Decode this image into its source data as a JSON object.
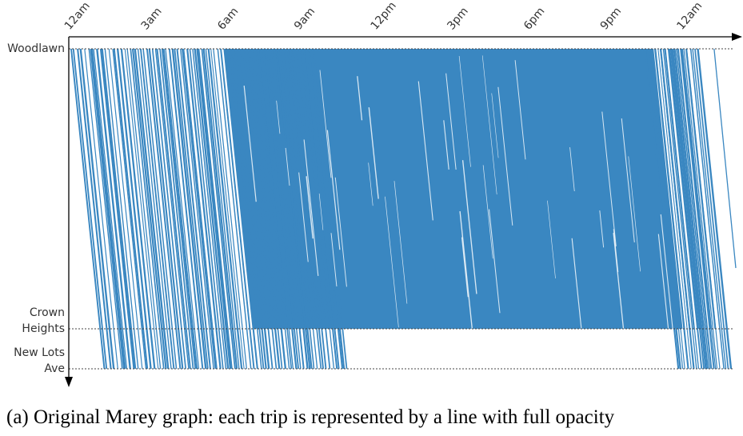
{
  "caption": "(a) Original Marey graph: each trip is represented by a line with full opacity",
  "chart_data": {
    "type": "line",
    "title": "",
    "xlabel": "",
    "ylabel": "",
    "x_ticks": [
      "12am",
      "3am",
      "6am",
      "9am",
      "12pm",
      "3pm",
      "6pm",
      "9pm",
      "12am"
    ],
    "x_tick_hours": [
      0,
      3,
      6,
      9,
      12,
      15,
      18,
      21,
      24
    ],
    "xlim_hours": [
      0,
      25.5
    ],
    "stations": [
      {
        "label_lines": [
          "Woodlawn"
        ],
        "position": 0
      },
      {
        "label_lines": [
          "Crown",
          "Heights"
        ],
        "position": 0.875
      },
      {
        "label_lines": [
          "New Lots",
          "Ave"
        ],
        "position": 1.0
      }
    ],
    "series_color": "#3a87c1",
    "trip_duration_hours": 1.3,
    "dense_service_hours": [
      6.0,
      22.8
    ],
    "new_lots_service_gaps_hours": [
      [
        9.6,
        23.8
      ]
    ],
    "grid": false
  }
}
